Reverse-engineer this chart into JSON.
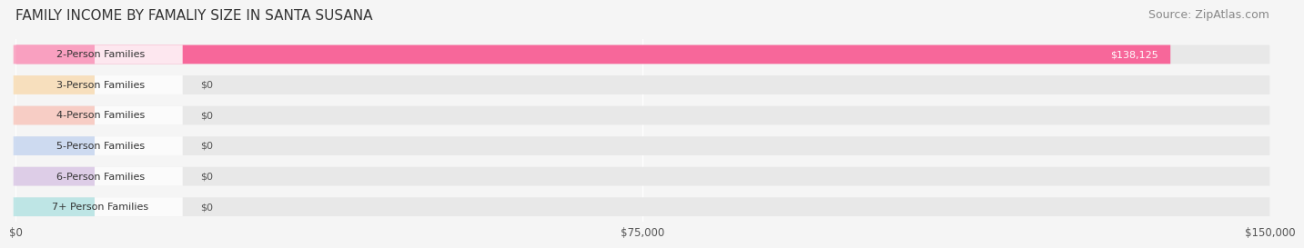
{
  "title": "FAMILY INCOME BY FAMALIY SIZE IN SANTA SUSANA",
  "source": "Source: ZipAtlas.com",
  "categories": [
    "2-Person Families",
    "3-Person Families",
    "4-Person Families",
    "5-Person Families",
    "6-Person Families",
    "7+ Person Families"
  ],
  "values": [
    138125,
    0,
    0,
    0,
    0,
    0
  ],
  "bar_colors": [
    "#f7679a",
    "#f5c98a",
    "#f5a89a",
    "#a8bfe8",
    "#c5a8d8",
    "#8dd4d4"
  ],
  "label_colors": [
    "#f7679a",
    "#f5c98a",
    "#f5a89a",
    "#a8bfe8",
    "#c5a8d8",
    "#8dd4d4"
  ],
  "value_labels": [
    "$138,125",
    "$0",
    "$0",
    "$0",
    "$0",
    "$0"
  ],
  "xlim": [
    0,
    150000
  ],
  "xticks": [
    0,
    75000,
    150000
  ],
  "xticklabels": [
    "$0",
    "$75,000",
    "$150,000"
  ],
  "background_color": "#f5f5f5",
  "bar_background_color": "#e8e8e8",
  "title_fontsize": 11,
  "source_fontsize": 9,
  "label_fontsize": 8,
  "value_fontsize": 8
}
